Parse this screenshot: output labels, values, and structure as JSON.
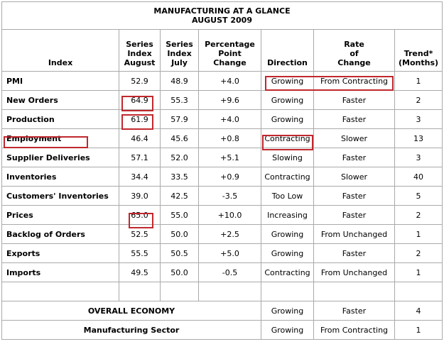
{
  "title": [
    "MANUFACTURING AT A GLANCE",
    "AUGUST 2009"
  ],
  "headers": [
    [
      "Index"
    ],
    [
      "Series",
      "Index",
      "August"
    ],
    [
      "Series",
      "Index",
      "July"
    ],
    [
      "Percentage",
      "Point",
      "Change"
    ],
    [
      "Direction"
    ],
    [
      "Rate",
      "of",
      "Change"
    ],
    [
      "Trend*",
      "(Months)"
    ]
  ],
  "rows": [
    [
      "PMI",
      "52.9",
      "48.9",
      "+4.0",
      "Growing",
      "From Contracting",
      "1"
    ],
    [
      "New Orders",
      "64.9",
      "55.3",
      "+9.6",
      "Growing",
      "Faster",
      "2"
    ],
    [
      "Production",
      "61.9",
      "57.9",
      "+4.0",
      "Growing",
      "Faster",
      "3"
    ],
    [
      "Employment",
      "46.4",
      "45.6",
      "+0.8",
      "Contracting",
      "Slower",
      "13"
    ],
    [
      "Supplier Deliveries",
      "57.1",
      "52.0",
      "+5.1",
      "Slowing",
      "Faster",
      "3"
    ],
    [
      "Inventories",
      "34.4",
      "33.5",
      "+0.9",
      "Contracting",
      "Slower",
      "40"
    ],
    [
      "Customers' Inventories",
      "39.0",
      "42.5",
      "-3.5",
      "Too Low",
      "Faster",
      "5"
    ],
    [
      "Prices",
      "65.0",
      "55.0",
      "+10.0",
      "Increasing",
      "Faster",
      "2"
    ],
    [
      "Backlog of Orders",
      "52.5",
      "50.0",
      "+2.5",
      "Growing",
      "From Unchanged",
      "1"
    ],
    [
      "Exports",
      "55.5",
      "50.5",
      "+5.0",
      "Growing",
      "Faster",
      "2"
    ],
    [
      "Imports",
      "49.5",
      "50.0",
      "-0.5",
      "Contracting",
      "From Unchanged",
      "1"
    ]
  ],
  "summary_rows": [
    [
      "OVERALL ECONOMY",
      "Growing",
      "Faster",
      "4"
    ],
    [
      "Manufacturing Sector",
      "Growing",
      "From Contracting",
      "1"
    ]
  ]
}
